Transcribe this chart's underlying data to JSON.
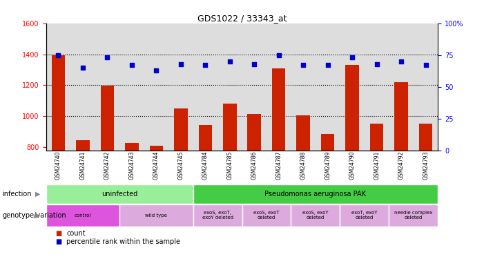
{
  "title": "GDS1022 / 33343_at",
  "samples": [
    "GSM24740",
    "GSM24741",
    "GSM24742",
    "GSM24743",
    "GSM24744",
    "GSM24745",
    "GSM24784",
    "GSM24785",
    "GSM24786",
    "GSM24787",
    "GSM24788",
    "GSM24789",
    "GSM24790",
    "GSM24791",
    "GSM24792",
    "GSM24793"
  ],
  "counts": [
    1395,
    843,
    1196,
    829,
    808,
    1048,
    943,
    1082,
    1013,
    1310,
    1004,
    883,
    1330,
    952,
    1218,
    950
  ],
  "percentiles": [
    75,
    65,
    73,
    67,
    63,
    68,
    67,
    70,
    68,
    75,
    67,
    67,
    73,
    68,
    70,
    67
  ],
  "ylim_left": [
    780,
    1600
  ],
  "ylim_right": [
    0,
    100
  ],
  "yticks_left": [
    800,
    1000,
    1200,
    1400,
    1600
  ],
  "yticks_right": [
    0,
    25,
    50,
    75,
    100
  ],
  "bar_color": "#cc2200",
  "dot_color": "#0000cc",
  "infection_groups": [
    {
      "label": "uninfected",
      "start": 0,
      "end": 6,
      "color": "#99ee99"
    },
    {
      "label": "Pseudomonas aeruginosa PAK",
      "start": 6,
      "end": 16,
      "color": "#44cc44"
    }
  ],
  "genotype_groups": [
    {
      "label": "control",
      "start": 0,
      "end": 3,
      "color": "#dd55dd"
    },
    {
      "label": "wild type",
      "start": 3,
      "end": 6,
      "color": "#ddaadd"
    },
    {
      "label": "exoS, exoT,\nexoY deleted",
      "start": 6,
      "end": 8,
      "color": "#ddaadd"
    },
    {
      "label": "exoS, exoT\ndeleted",
      "start": 8,
      "end": 10,
      "color": "#ddaadd"
    },
    {
      "label": "exoS, exoY\ndeleted",
      "start": 10,
      "end": 12,
      "color": "#ddaadd"
    },
    {
      "label": "exoT, exoY\ndeleted",
      "start": 12,
      "end": 14,
      "color": "#ddaadd"
    },
    {
      "label": "needle complex\ndeleted",
      "start": 14,
      "end": 16,
      "color": "#ddaadd"
    }
  ],
  "legend_items": [
    {
      "label": "count",
      "color": "#cc2200"
    },
    {
      "label": "percentile rank within the sample",
      "color": "#0000cc"
    }
  ],
  "background_color": "#ffffff",
  "plot_bg_color": "#dddddd"
}
